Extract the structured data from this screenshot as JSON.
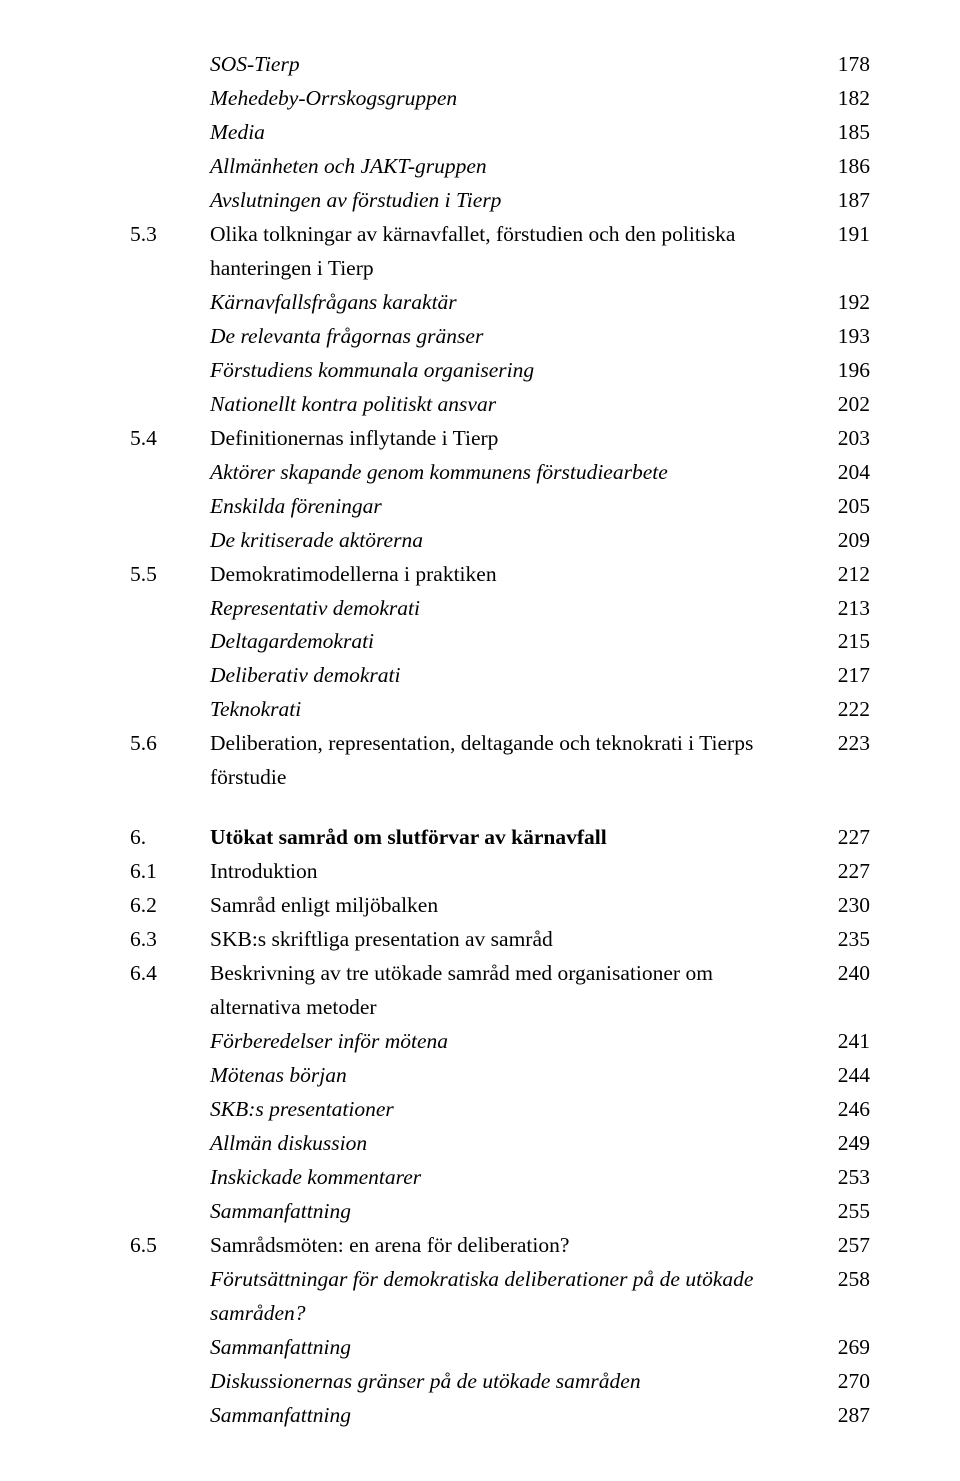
{
  "rows": [
    {
      "num": "",
      "text": "SOS-Tierp",
      "page": "178",
      "italic": true
    },
    {
      "num": "",
      "text": "Mehedeby-Orrskogsgruppen",
      "page": "182",
      "italic": true
    },
    {
      "num": "",
      "text": "Media",
      "page": "185",
      "italic": true
    },
    {
      "num": "",
      "text": "Allmänheten och JAKT-gruppen",
      "page": "186",
      "italic": true
    },
    {
      "num": "",
      "text": "Avslutningen av förstudien i Tierp",
      "page": "187",
      "italic": true
    },
    {
      "num": "5.3",
      "text": "Olika tolkningar av kärnavfallet, förstudien och den politiska hanteringen i Tierp",
      "page": "191"
    },
    {
      "num": "",
      "text": "Kärnavfallsfrågans karaktär",
      "page": "192",
      "italic": true
    },
    {
      "num": "",
      "text": "De relevanta frågornas gränser",
      "page": "193",
      "italic": true
    },
    {
      "num": "",
      "text": "Förstudiens kommunala organisering",
      "page": "196",
      "italic": true
    },
    {
      "num": "",
      "text": "Nationellt kontra politiskt ansvar",
      "page": "202",
      "italic": true
    },
    {
      "num": "5.4",
      "text": "Definitionernas inflytande i Tierp",
      "page": "203"
    },
    {
      "num": "",
      "text": "Aktörer skapande genom kommunens förstudiearbete",
      "page": "204",
      "italic": true
    },
    {
      "num": "",
      "text": "Enskilda föreningar",
      "page": "205",
      "italic": true
    },
    {
      "num": "",
      "text": "De kritiserade aktörerna",
      "page": "209",
      "italic": true
    },
    {
      "num": "5.5",
      "text": "Demokratimodellerna i praktiken",
      "page": "212"
    },
    {
      "num": "",
      "text": "Representativ demokrati",
      "page": "213",
      "italic": true
    },
    {
      "num": "",
      "text": "Deltagardemokrati",
      "page": "215",
      "italic": true
    },
    {
      "num": "",
      "text": "Deliberativ demokrati",
      "page": "217",
      "italic": true
    },
    {
      "num": "",
      "text": "Teknokrati",
      "page": "222",
      "italic": true
    },
    {
      "num": "5.6",
      "text": "Deliberation, representation, deltagande och teknokrati i Tierps förstudie",
      "page": "223"
    },
    {
      "gap": true
    },
    {
      "num": "6.",
      "text": "Utökat samråd om slutförvar av kärnavfall",
      "page": "227",
      "bold": true
    },
    {
      "num": "6.1",
      "text": "Introduktion",
      "page": "227"
    },
    {
      "num": "6.2",
      "text": "Samråd enligt miljöbalken",
      "page": "230"
    },
    {
      "num": "6.3",
      "text": "SKB:s skriftliga presentation av samråd",
      "page": "235"
    },
    {
      "num": "6.4",
      "text": "Beskrivning av tre utökade samråd med organisationer om alternativa metoder",
      "page": "240"
    },
    {
      "num": "",
      "text": "Förberedelser inför mötena",
      "page": "241",
      "italic": true
    },
    {
      "num": "",
      "text": "Mötenas början",
      "page": "244",
      "italic": true
    },
    {
      "num": "",
      "text": "SKB:s presentationer",
      "page": "246",
      "italic": true
    },
    {
      "num": "",
      "text": "Allmän diskussion",
      "page": "249",
      "italic": true
    },
    {
      "num": "",
      "text": "Inskickade kommentarer",
      "page": "253",
      "italic": true
    },
    {
      "num": "",
      "text": "Sammanfattning",
      "page": "255",
      "italic": true
    },
    {
      "num": "6.5",
      "text": "Samrådsmöten: en arena för deliberation?",
      "page": "257"
    },
    {
      "num": "",
      "text": "Förutsättningar för demokratiska deliberationer på de utökade samråden?",
      "page": "258",
      "italic": true
    },
    {
      "num": "",
      "text": "Sammanfattning",
      "page": "269",
      "italic": true
    },
    {
      "num": "",
      "text": "Diskussionernas gränser på de utökade samråden",
      "page": "270",
      "italic": true
    },
    {
      "num": "",
      "text": "Sammanfattning",
      "page": "287",
      "italic": true
    }
  ]
}
